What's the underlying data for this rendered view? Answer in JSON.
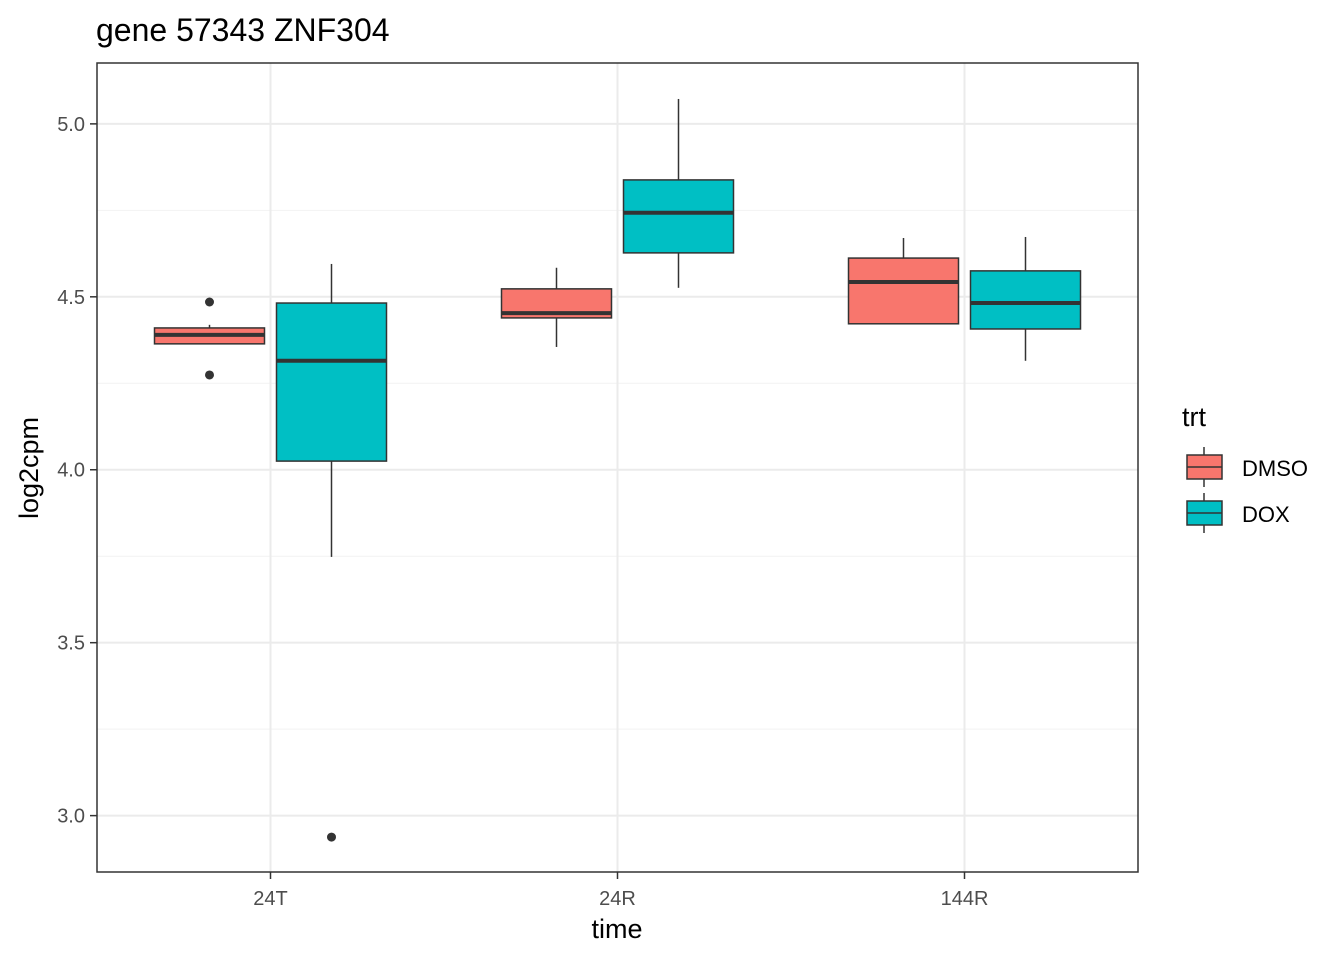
{
  "chart_data": {
    "type": "boxplot",
    "title": "gene 57343 ZNF304",
    "xlabel": "time",
    "ylabel": "log2cpm",
    "categories": [
      "24T",
      "24R",
      "144R"
    ],
    "ylim": [
      2.837,
      5.176
    ],
    "yticks": [
      3.0,
      3.5,
      4.0,
      4.5,
      5.0
    ],
    "ytick_labels": [
      "3.0",
      "3.5",
      "4.0",
      "4.5",
      "5.0"
    ],
    "grid": true,
    "legend": {
      "title": "trt",
      "position": "right",
      "entries": [
        "DMSO",
        "DOX"
      ]
    },
    "series": [
      {
        "name": "DMSO",
        "color": "#F8766D",
        "boxes": [
          {
            "category": "24T",
            "whisker_low": 4.364,
            "q1": 4.364,
            "median": 4.39,
            "q3": 4.41,
            "whisker_high": 4.419,
            "outliers": [
              4.485,
              4.274
            ]
          },
          {
            "category": "24R",
            "whisker_low": 4.355,
            "q1": 4.439,
            "median": 4.453,
            "q3": 4.523,
            "whisker_high": 4.584,
            "outliers": []
          },
          {
            "category": "144R",
            "whisker_low": 4.422,
            "q1": 4.422,
            "median": 4.543,
            "q3": 4.612,
            "whisker_high": 4.67,
            "outliers": []
          }
        ]
      },
      {
        "name": "DOX",
        "color": "#00BFC4",
        "boxes": [
          {
            "category": "24T",
            "whisker_low": 3.748,
            "q1": 4.025,
            "median": 4.315,
            "q3": 4.482,
            "whisker_high": 4.595,
            "outliers": [
              2.938
            ]
          },
          {
            "category": "24R",
            "whisker_low": 4.526,
            "q1": 4.627,
            "median": 4.743,
            "q3": 4.838,
            "whisker_high": 5.072,
            "outliers": []
          },
          {
            "category": "144R",
            "whisker_low": 4.315,
            "q1": 4.407,
            "median": 4.482,
            "q3": 4.575,
            "whisker_high": 4.673,
            "outliers": []
          }
        ]
      }
    ]
  }
}
